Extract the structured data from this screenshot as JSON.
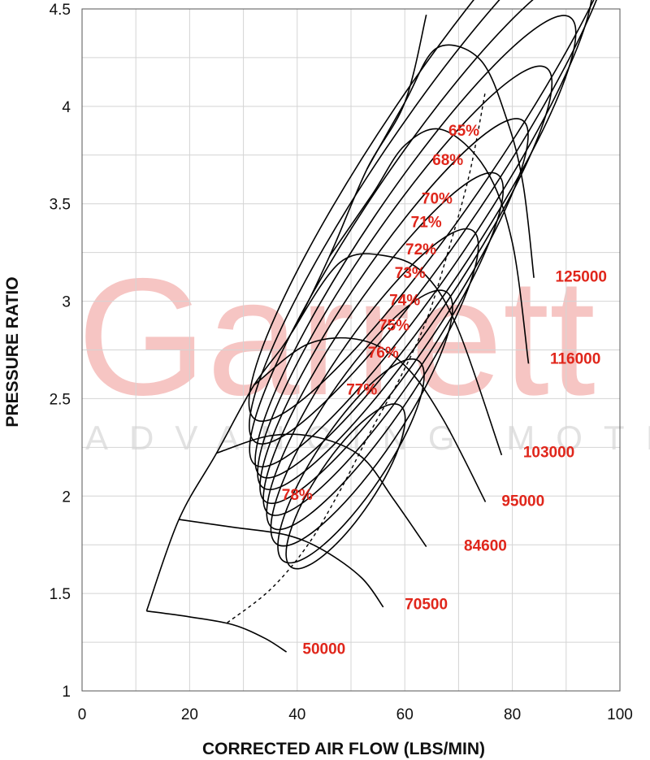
{
  "watermark": {
    "brand": "Garrett",
    "tagline": "ADVANCING MOTION"
  },
  "chart_data": {
    "type": "line",
    "title": "",
    "xlabel": "CORRECTED AIR FLOW (LBS/MIN)",
    "ylabel": "PRESSURE RATIO",
    "xlim": [
      0,
      100
    ],
    "ylim": [
      1,
      4.5
    ],
    "xticks": [
      "0",
      "20",
      "40",
      "60",
      "80",
      "100"
    ],
    "yticks": [
      "1",
      "1.5",
      "2",
      "2.5",
      "3",
      "3.5",
      "4",
      "4.5"
    ],
    "grid": true,
    "surge_line": [
      [
        12,
        1.41
      ],
      [
        18,
        1.88
      ],
      [
        25,
        2.22
      ],
      [
        32,
        2.57
      ],
      [
        39,
        2.84
      ],
      [
        46,
        3.23
      ],
      [
        53,
        3.68
      ],
      [
        60,
        4.02
      ],
      [
        64,
        4.47
      ]
    ],
    "choke_line": [
      [
        27,
        1.35
      ],
      [
        35,
        1.52
      ],
      [
        42,
        1.75
      ],
      [
        48,
        2.03
      ],
      [
        54,
        2.35
      ],
      [
        59,
        2.6
      ],
      [
        64,
        2.9
      ],
      [
        68,
        3.25
      ],
      [
        72,
        3.65
      ],
      [
        75,
        4.08
      ]
    ],
    "speed_lines": [
      {
        "name": "50000",
        "points": [
          [
            12,
            1.41
          ],
          [
            20,
            1.38
          ],
          [
            28,
            1.34
          ],
          [
            34,
            1.27
          ],
          [
            38,
            1.2
          ]
        ]
      },
      {
        "name": "70500",
        "points": [
          [
            18,
            1.88
          ],
          [
            28,
            1.84
          ],
          [
            38,
            1.8
          ],
          [
            45,
            1.72
          ],
          [
            52,
            1.58
          ],
          [
            56,
            1.43
          ]
        ]
      },
      {
        "name": "84600",
        "points": [
          [
            25,
            2.22
          ],
          [
            35,
            2.31
          ],
          [
            44,
            2.3
          ],
          [
            52,
            2.2
          ],
          [
            58,
            1.98
          ],
          [
            64,
            1.74
          ]
        ]
      },
      {
        "name": "95000",
        "points": [
          [
            32,
            2.57
          ],
          [
            42,
            2.78
          ],
          [
            52,
            2.8
          ],
          [
            60,
            2.67
          ],
          [
            67,
            2.4
          ],
          [
            75,
            1.97
          ]
        ]
      },
      {
        "name": "103000",
        "points": [
          [
            39,
            2.84
          ],
          [
            48,
            3.2
          ],
          [
            57,
            3.23
          ],
          [
            64,
            3.13
          ],
          [
            70,
            2.85
          ],
          [
            78,
            2.21
          ]
        ]
      },
      {
        "name": "116000",
        "points": [
          [
            46,
            3.23
          ],
          [
            54,
            3.55
          ],
          [
            60,
            3.8
          ],
          [
            67,
            3.88
          ],
          [
            75,
            3.68
          ],
          [
            80,
            3.3
          ],
          [
            83,
            2.68
          ]
        ]
      },
      {
        "name": "125000",
        "points": [
          [
            53,
            3.68
          ],
          [
            60,
            4.02
          ],
          [
            66,
            4.3
          ],
          [
            74,
            4.24
          ],
          [
            79,
            3.93
          ],
          [
            82,
            3.6
          ],
          [
            84,
            3.12
          ]
        ]
      }
    ],
    "efficiency_islands": [
      {
        "name": "78%",
        "center": [
          49,
          2.05
        ],
        "rx": 12,
        "ry": 0.5
      },
      {
        "name": "77%",
        "center": [
          50,
          2.18
        ],
        "rx": 14,
        "ry": 0.62
      },
      {
        "name": "76%",
        "center": [
          52,
          2.4
        ],
        "rx": 16,
        "ry": 0.78
      },
      {
        "name": "75%",
        "center": [
          54,
          2.6
        ],
        "rx": 17,
        "ry": 0.92
      },
      {
        "name": "74%",
        "center": [
          56,
          2.78
        ],
        "rx": 18,
        "ry": 1.05
      },
      {
        "name": "73%",
        "center": [
          58,
          2.95
        ],
        "rx": 19,
        "ry": 1.18
      },
      {
        "name": "72%",
        "center": [
          60,
          3.12
        ],
        "rx": 20,
        "ry": 1.3
      },
      {
        "name": "71%",
        "center": [
          62,
          3.28
        ],
        "rx": 21,
        "ry": 1.42
      },
      {
        "name": "70%",
        "center": [
          63,
          3.42
        ],
        "rx": 22,
        "ry": 1.52
      },
      {
        "name": "68%",
        "center": [
          65,
          3.62
        ],
        "rx": 23,
        "ry": 1.62
      },
      {
        "name": "65%",
        "center": [
          67,
          3.82
        ],
        "rx": 24,
        "ry": 1.72
      }
    ],
    "speed_labels": [
      {
        "text": "125000",
        "x": 88,
        "y": 3.1
      },
      {
        "text": "116000",
        "x": 87,
        "y": 2.68
      },
      {
        "text": "103000",
        "x": 82,
        "y": 2.2
      },
      {
        "text": "95000",
        "x": 78,
        "y": 1.95
      },
      {
        "text": "84600",
        "x": 71,
        "y": 1.72
      },
      {
        "text": "70500",
        "x": 60,
        "y": 1.42
      },
      {
        "text": "50000",
        "x": 41,
        "y": 1.19
      }
    ],
    "efficiency_labels": [
      {
        "text": "65%",
        "x": 71,
        "y": 3.85
      },
      {
        "text": "68%",
        "x": 68,
        "y": 3.7
      },
      {
        "text": "70%",
        "x": 66,
        "y": 3.5
      },
      {
        "text": "71%",
        "x": 64,
        "y": 3.38
      },
      {
        "text": "72%",
        "x": 63,
        "y": 3.24
      },
      {
        "text": "73%",
        "x": 61,
        "y": 3.12
      },
      {
        "text": "74%",
        "x": 60,
        "y": 2.98
      },
      {
        "text": "75%",
        "x": 58,
        "y": 2.85
      },
      {
        "text": "76%",
        "x": 56,
        "y": 2.71
      },
      {
        "text": "77%",
        "x": 52,
        "y": 2.52
      },
      {
        "text": "78%",
        "x": 40,
        "y": 1.98
      }
    ]
  }
}
